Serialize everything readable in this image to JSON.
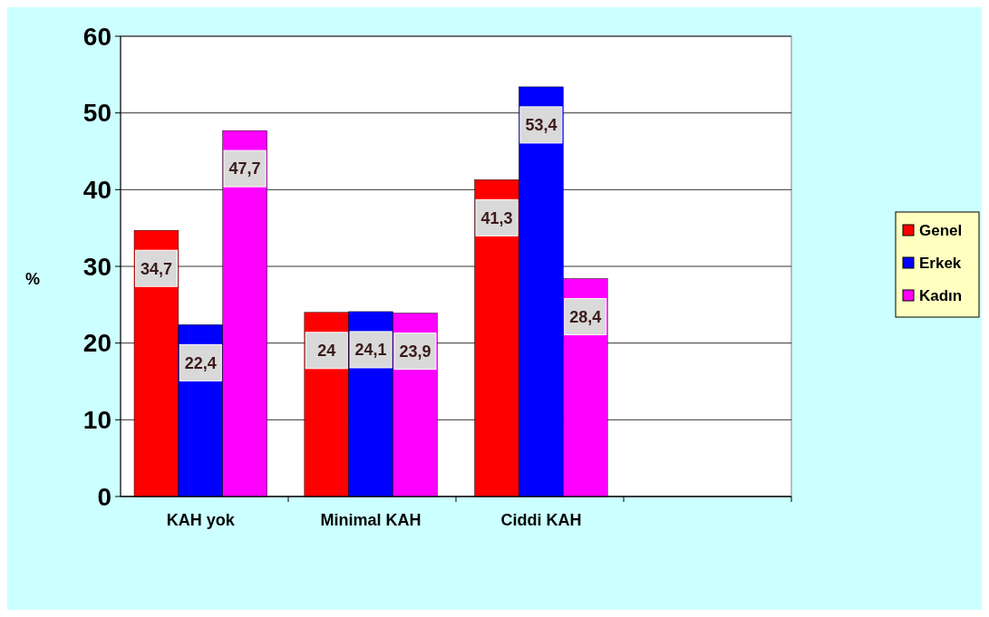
{
  "chart_data": {
    "type": "bar",
    "ylabel": "%",
    "categories": [
      "KAH yok",
      "Minimal KAH",
      "Ciddi KAH",
      null
    ],
    "series": [
      {
        "name": "Genel",
        "color": "#ff0000",
        "values": [
          34.7,
          24,
          41.3,
          null
        ],
        "value_labels": [
          "34,7",
          "24",
          "41,3",
          null
        ]
      },
      {
        "name": "Erkek",
        "color": "#0000ff",
        "values": [
          22.4,
          24.1,
          53.4,
          null
        ],
        "value_labels": [
          "22,4",
          "24,1",
          "53,4",
          null
        ]
      },
      {
        "name": "Kadın",
        "color": "#ff00ff",
        "values": [
          47.7,
          23.9,
          28.4,
          null
        ],
        "value_labels": [
          "47,7",
          "23,9",
          "28,4",
          null
        ]
      }
    ],
    "ylim": [
      0,
      60
    ],
    "yticks": [
      0,
      10,
      20,
      30,
      40,
      50,
      60
    ],
    "grid": "y",
    "legend": "right"
  }
}
